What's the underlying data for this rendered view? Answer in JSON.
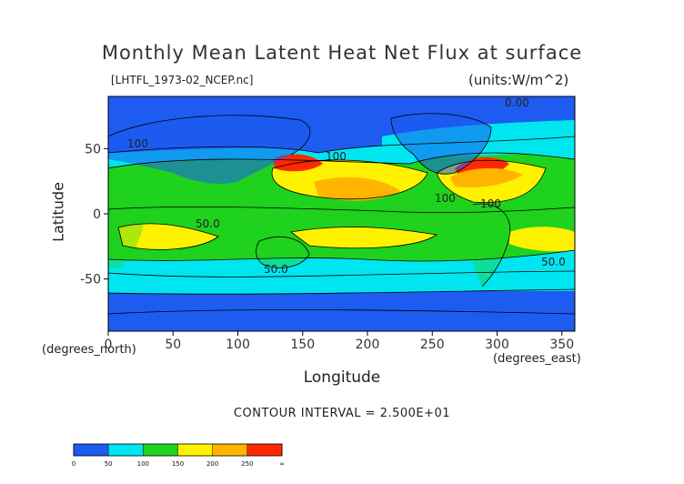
{
  "header": {
    "title": "Monthly Mean Latent Heat Net Flux at surface",
    "source": "[LHTFL_1973-02_NCEP.nc]",
    "units": "(units:W/m^2)"
  },
  "footer": {
    "contour_interval": "CONTOUR INTERVAL = 2.500E+01"
  },
  "chart_data": {
    "type": "heatmap",
    "title": "Monthly Mean Latent Heat Net Flux at surface",
    "xlabel": "Longitude",
    "ylabel": "Latitude",
    "xunit": "(degrees_east)",
    "yunit": "(degrees_north)",
    "xlim": [
      0,
      360
    ],
    "ylim": [
      -90,
      90
    ],
    "xticks": [
      0,
      50,
      100,
      150,
      200,
      250,
      300,
      350
    ],
    "yticks": [
      50,
      0,
      -50
    ],
    "contour_labels": [
      "0.00",
      "100",
      "100",
      "100",
      "100",
      "50.0",
      "50.0",
      "50.0"
    ],
    "colorbar": {
      "levels": [
        "0",
        "50",
        "100",
        "150",
        "200",
        "250",
        "∞"
      ],
      "colors": [
        "#1e5bf0",
        "#00e6f0",
        "#1ed21e",
        "#fff200",
        "#ffb400",
        "#ff2800"
      ]
    }
  }
}
